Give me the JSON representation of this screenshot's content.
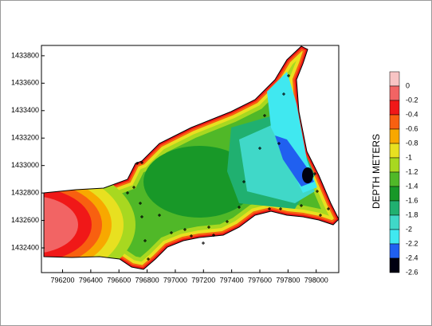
{
  "chart_data": {
    "type": "contour",
    "xlim": [
      796050,
      798160
    ],
    "xticks": [
      796200,
      796400,
      796600,
      796800,
      797000,
      797200,
      797400,
      797600,
      797800,
      798000
    ],
    "ylim": [
      1432220,
      1433875
    ],
    "yticks": [
      1432400,
      1432600,
      1432800,
      1433000,
      1433200,
      1433400,
      1433600,
      1433800
    ],
    "colorbar_label": "DEPTH METERS",
    "levels": [
      0,
      -0.2,
      -0.4,
      -0.6,
      -0.8,
      -1,
      -1.2,
      -1.4,
      -1.6,
      -1.8,
      -2,
      -2.2,
      -2.4,
      -2.6
    ],
    "level_colors": [
      "#f8c4c4",
      "#f26464",
      "#f01818",
      "#f86010",
      "#f8a800",
      "#e8e020",
      "#a8d820",
      "#50b828",
      "#189828",
      "#20b070",
      "#40d8c8",
      "#40e8f0",
      "#2060f0",
      "#000010"
    ]
  }
}
